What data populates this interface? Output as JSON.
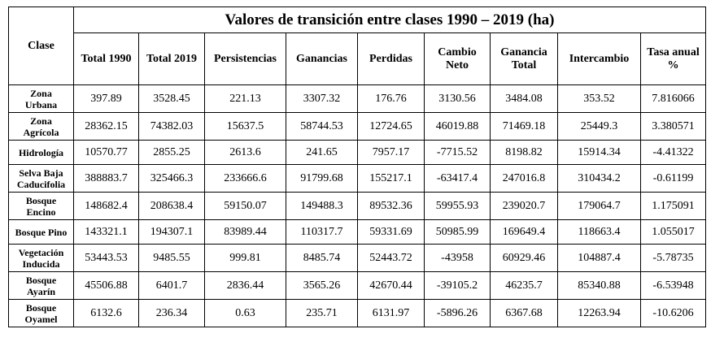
{
  "table": {
    "title": "Valores de transición entre clases 1990 – 2019 (ha)",
    "headers": {
      "clase": "Clase",
      "columns": [
        [
          "Total 1990"
        ],
        [
          "Total 2019"
        ],
        [
          "Persistencias"
        ],
        [
          "Ganancias"
        ],
        [
          "Perdidas"
        ],
        [
          "Cambio",
          "Neto"
        ],
        [
          "Ganancia",
          "Total"
        ],
        [
          "Intercambio"
        ],
        [
          "Tasa anual",
          "%"
        ]
      ]
    },
    "rows": [
      {
        "clase": [
          "Zona",
          "Urbana"
        ],
        "values": [
          "397.89",
          "3528.45",
          "221.13",
          "3307.32",
          "176.76",
          "3130.56",
          "3484.08",
          "353.52",
          "7.816066"
        ]
      },
      {
        "clase": [
          "Zona",
          "Agrícola"
        ],
        "values": [
          "28362.15",
          "74382.03",
          "15637.5",
          "58744.53",
          "12724.65",
          "46019.88",
          "71469.18",
          "25449.3",
          "3.380571"
        ]
      },
      {
        "clase": [
          "Hidrología"
        ],
        "values": [
          "10570.77",
          "2855.25",
          "2613.6",
          "241.65",
          "7957.17",
          "-7715.52",
          "8198.82",
          "15914.34",
          "-4.41322"
        ]
      },
      {
        "clase": [
          "Selva Baja",
          "Caducifolia"
        ],
        "values": [
          "388883.7",
          "325466.3",
          "233666.6",
          "91799.68",
          "155217.1",
          "-63417.4",
          "247016.8",
          "310434.2",
          "-0.61199"
        ]
      },
      {
        "clase": [
          "Bosque",
          "Encino"
        ],
        "values": [
          "148682.4",
          "208638.4",
          "59150.07",
          "149488.3",
          "89532.36",
          "59955.93",
          "239020.7",
          "179064.7",
          "1.175091"
        ]
      },
      {
        "clase": [
          "Bosque Pino"
        ],
        "values": [
          "143321.1",
          "194307.1",
          "83989.44",
          "110317.7",
          "59331.69",
          "50985.99",
          "169649.4",
          "118663.4",
          "1.055017"
        ]
      },
      {
        "clase": [
          "Vegetación",
          "Inducida"
        ],
        "values": [
          "53443.53",
          "9485.55",
          "999.81",
          "8485.74",
          "52443.72",
          "-43958",
          "60929.46",
          "104887.4",
          "-5.78735"
        ]
      },
      {
        "clase": [
          "Bosque",
          "Ayarín"
        ],
        "values": [
          "45506.88",
          "6401.7",
          "2836.44",
          "3565.26",
          "42670.44",
          "-39105.2",
          "46235.7",
          "85340.88",
          "-6.53948"
        ]
      },
      {
        "clase": [
          "Bosque",
          "Oyamel"
        ],
        "values": [
          "6132.6",
          "236.34",
          "0.63",
          "235.71",
          "6131.97",
          "-5896.26",
          "6367.68",
          "12263.94",
          "-10.6206"
        ]
      }
    ]
  }
}
